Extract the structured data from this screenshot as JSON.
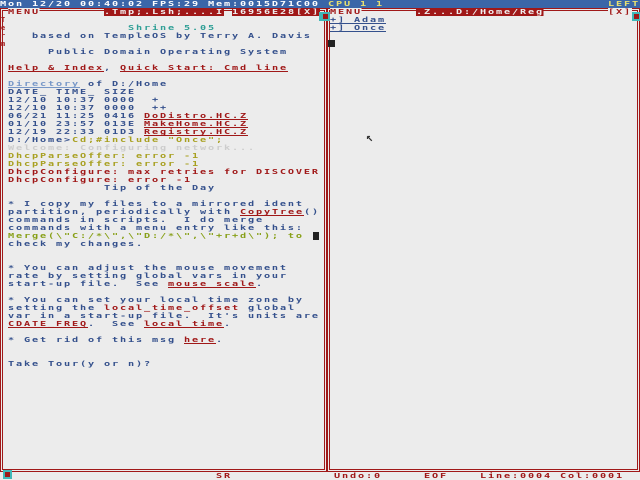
{
  "topbar": {
    "status": "Mon 12/20 00:40:02 FPS:29 Mem:0015D71C00",
    "cpu": "CPU 1 1",
    "layout": "LEFT"
  },
  "colors": {
    "accent_red": "#a01818",
    "topbar_blue": "#3b66a8",
    "background": "#ececec",
    "text_blue": "#34508c"
  },
  "left_window": {
    "menu": "MENU",
    "title": ".Tmp;.Lsh;....I",
    "task_addr": "16956E28",
    "close": "[X]",
    "side_label": "Term",
    "bottom_label": "SR",
    "lines": [
      [
        {
          "t": "Shrine 5.05",
          "c": "cyan",
          "x": 15
        }
      ],
      [
        {
          "t": "based on TempleOS by Terry A. Davis",
          "c": "blue",
          "x": 3
        }
      ],
      [],
      [
        {
          "t": "Public Domain Operating System",
          "c": "blue",
          "x": 5
        }
      ],
      [],
      [
        {
          "t": "Help & Index",
          "c": "red",
          "u": 1
        },
        {
          "t": ", ",
          "c": "blue"
        },
        {
          "t": "Quick Start: Cmd line",
          "c": "red",
          "u": 1
        }
      ],
      [],
      [
        {
          "t": "Directory",
          "c": "ltblue",
          "u": 1
        },
        {
          "t": " of D:/Home",
          "c": "blue"
        }
      ],
      [
        {
          "t": "DATE_ TIME_ SIZE",
          "c": "blue"
        }
      ],
      [
        {
          "t": "12/10 10:37 0000  +",
          "c": "blue"
        }
      ],
      [
        {
          "t": "12/10 10:37 0000  ++",
          "c": "blue"
        }
      ],
      [
        {
          "t": "06/21 11:25 0416 ",
          "c": "blue"
        },
        {
          "t": "DoDistro.HC.Z",
          "c": "red",
          "u": 1
        }
      ],
      [
        {
          "t": "01/10 23:57 013E ",
          "c": "blue"
        },
        {
          "t": "MakeHome.HC.Z",
          "c": "red",
          "u": 1
        }
      ],
      [
        {
          "t": "12/19 22:33 01D3 ",
          "c": "blue"
        },
        {
          "t": "Registry.HC.Z",
          "c": "red",
          "u": 1
        }
      ],
      [
        {
          "t": "D:/Home>",
          "c": "blue"
        },
        {
          "t": "Cd;#include \"Once\";",
          "c": "yellow"
        }
      ],
      [
        {
          "t": "Welcome: Configuring network...",
          "c": "gray"
        }
      ],
      [
        {
          "t": "DhcpParseOffer: error -1",
          "c": "yellow"
        }
      ],
      [
        {
          "t": "DhcpParseOffer: error -1",
          "c": "yellow"
        }
      ],
      [
        {
          "t": "DhcpConfigure: max retries for DISCOVER",
          "c": "red"
        }
      ],
      [
        {
          "t": "DhcpConfigure: error -1",
          "c": "red"
        }
      ],
      [
        {
          "t": "Tip of the Day",
          "c": "blue",
          "x": 12
        }
      ],
      [],
      [
        {
          "t": "* I copy my files to a mirrored ident",
          "c": "blue"
        }
      ],
      [
        {
          "t": "partition, periodically with ",
          "c": "blue"
        },
        {
          "t": "CopyTree",
          "c": "red",
          "u": 1
        },
        {
          "t": "()",
          "c": "blue"
        }
      ],
      [
        {
          "t": "commands in scripts.  I do merge",
          "c": "blue"
        }
      ],
      [
        {
          "t": "commands with a menu entry like this:",
          "c": "blue"
        }
      ],
      [
        {
          "t": "Merge(\\\"C:/*\\\",\\\"D:/*\\\",\\\"+r+d\\\"); to",
          "c": "green"
        }
      ],
      [
        {
          "t": "check my changes.",
          "c": "blue"
        }
      ],
      [],
      [],
      [
        {
          "t": "* You can adjust the mouse movement",
          "c": "blue"
        }
      ],
      [
        {
          "t": "rate by setting global vars in your",
          "c": "blue"
        }
      ],
      [
        {
          "t": "start-up file.  See ",
          "c": "blue"
        },
        {
          "t": "mouse scale",
          "c": "red",
          "u": 1
        },
        {
          "t": ".",
          "c": "blue"
        }
      ],
      [],
      [
        {
          "t": "* You can set your local time zone by",
          "c": "blue"
        }
      ],
      [
        {
          "t": "setting the ",
          "c": "blue"
        },
        {
          "t": "local_time_offset",
          "c": "red"
        },
        {
          "t": " global",
          "c": "blue"
        }
      ],
      [
        {
          "t": "var in a start-up file.  It's units are",
          "c": "blue"
        }
      ],
      [
        {
          "t": "CDATE_FREQ",
          "c": "red",
          "u": 1
        },
        {
          "t": ".  See ",
          "c": "blue"
        },
        {
          "t": "local time",
          "c": "red",
          "u": 1
        },
        {
          "t": ".",
          "c": "blue"
        }
      ],
      [],
      [
        {
          "t": "* Get rid of this msg ",
          "c": "blue"
        },
        {
          "t": "here",
          "c": "red",
          "u": 1
        },
        {
          "t": ".",
          "c": "blue"
        }
      ],
      [],
      [],
      [
        {
          "t": "Take Tour(y or n)?",
          "c": "blue"
        }
      ]
    ]
  },
  "right_window": {
    "menu": "MENU",
    "title": ".Z...D:/Home/Reg",
    "close": "[X]",
    "tree_items": [
      "+] Adam",
      "+] Once"
    ],
    "status": {
      "undo": "Undo:0",
      "eof": "EOF",
      "line_col": "Line:0004 Col:0001"
    }
  }
}
